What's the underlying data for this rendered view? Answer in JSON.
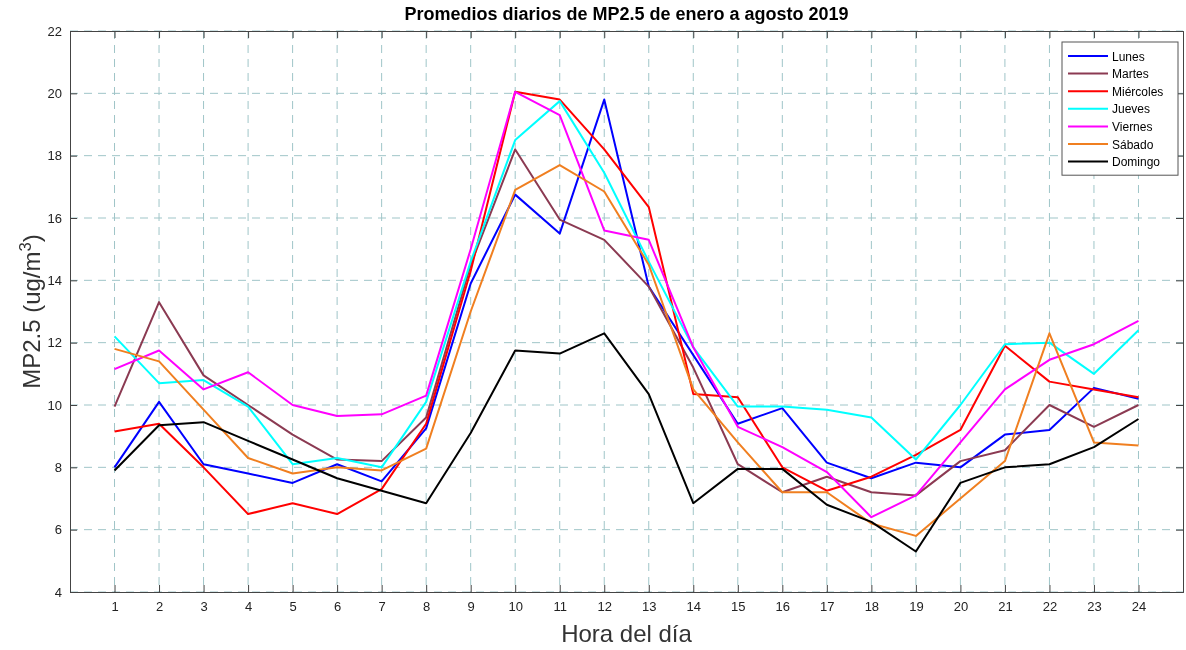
{
  "chart_data": {
    "type": "line",
    "title": "Promedios diarios de MP2.5 de enero a agosto 2019",
    "xlabel": "Hora del día",
    "ylabel": "MP2.5 (ug/m$^{3}$)",
    "x": [
      1,
      2,
      3,
      4,
      5,
      6,
      7,
      8,
      9,
      10,
      11,
      12,
      13,
      14,
      15,
      16,
      17,
      18,
      19,
      20,
      21,
      22,
      23,
      24
    ],
    "xlim": [
      0,
      25
    ],
    "xticks": [
      1,
      2,
      3,
      4,
      5,
      6,
      7,
      8,
      9,
      10,
      11,
      12,
      13,
      14,
      15,
      16,
      17,
      18,
      19,
      20,
      21,
      22,
      23,
      24
    ],
    "ylim": [
      4,
      22
    ],
    "yticks": [
      4,
      6,
      8,
      10,
      12,
      14,
      16,
      18,
      20,
      22
    ],
    "grid": true,
    "legend": "top right",
    "marker": "none",
    "line_style": "solid",
    "series": [
      {
        "name": "Lunes",
        "color": "#0000ff",
        "values": [
          8.0,
          10.1,
          8.1,
          7.8,
          7.5,
          8.1,
          7.55,
          9.25,
          13.9,
          16.75,
          15.5,
          19.8,
          13.8,
          11.6,
          9.4,
          9.9,
          8.15,
          7.65,
          8.15,
          8.0,
          9.05,
          9.2,
          10.55,
          10.2
        ]
      },
      {
        "name": "Martes",
        "color": "#8b3a52",
        "values": [
          9.95,
          13.3,
          10.95,
          10.0,
          9.05,
          8.25,
          8.2,
          9.6,
          14.5,
          18.2,
          15.95,
          15.3,
          13.8,
          11.2,
          8.1,
          7.2,
          7.7,
          7.2,
          7.1,
          8.2,
          8.55,
          10.0,
          9.3,
          10.0
        ]
      },
      {
        "name": "Miércoles",
        "color": "#ff0000",
        "values": [
          9.15,
          9.4,
          8.0,
          6.5,
          6.85,
          6.5,
          7.3,
          9.4,
          14.3,
          20.05,
          19.8,
          18.2,
          16.35,
          10.35,
          10.25,
          8.0,
          7.25,
          7.7,
          8.4,
          9.2,
          11.9,
          10.75,
          10.5,
          10.25
        ]
      },
      {
        "name": "Jueves",
        "color": "#00ffff",
        "values": [
          12.2,
          10.7,
          10.8,
          9.95,
          8.1,
          8.3,
          8.0,
          10.1,
          14.6,
          18.5,
          19.75,
          17.45,
          14.6,
          11.85,
          9.95,
          9.95,
          9.85,
          9.6,
          8.25,
          10.0,
          11.95,
          12.0,
          11.0,
          12.4
        ]
      },
      {
        "name": "Viernes",
        "color": "#ff00ff",
        "values": [
          11.15,
          11.75,
          10.5,
          11.05,
          10.0,
          9.65,
          9.7,
          10.3,
          15.0,
          20.05,
          19.3,
          15.6,
          15.3,
          11.85,
          9.3,
          8.65,
          7.85,
          6.4,
          7.1,
          8.8,
          10.5,
          11.45,
          11.95,
          12.7
        ]
      },
      {
        "name": "Sábado",
        "color": "#f07f20",
        "values": [
          11.8,
          11.4,
          9.85,
          8.3,
          7.8,
          8.0,
          7.9,
          8.6,
          13.0,
          16.9,
          17.7,
          16.85,
          14.5,
          10.5,
          8.8,
          7.2,
          7.2,
          6.2,
          5.8,
          7.0,
          8.2,
          12.3,
          8.8,
          8.7
        ]
      },
      {
        "name": "Domingo",
        "color": "#000000",
        "values": [
          7.9,
          9.35,
          9.45,
          8.85,
          8.25,
          7.65,
          7.25,
          6.85,
          9.1,
          11.75,
          11.65,
          12.3,
          10.35,
          6.85,
          7.95,
          7.95,
          6.8,
          6.25,
          5.3,
          7.5,
          8.0,
          8.1,
          8.65,
          9.55
        ]
      }
    ]
  }
}
